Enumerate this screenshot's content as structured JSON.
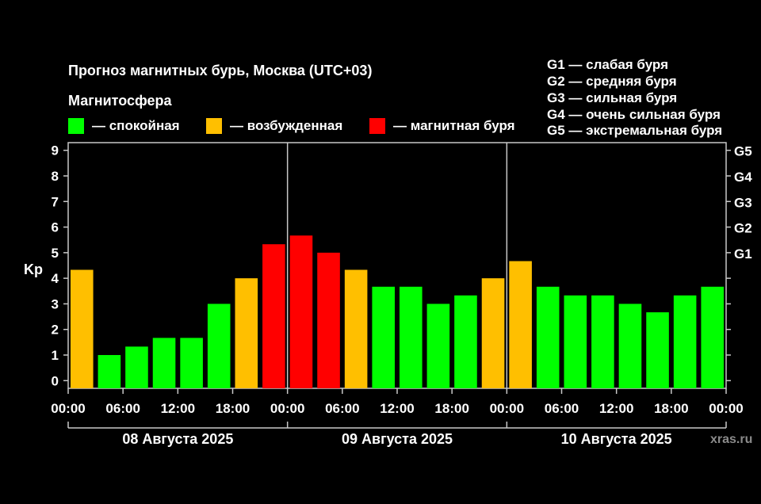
{
  "header": {
    "title": "Прогноз магнитных бурь, Москва (UTC+03)",
    "section": "Магнитосфера"
  },
  "legend": [
    {
      "label": "— спокойная",
      "color": "#00ff00"
    },
    {
      "label": "— возбужденная",
      "color": "#ffbf00"
    },
    {
      "label": "— магнитная буря",
      "color": "#ff0000"
    }
  ],
  "storm_scale": [
    "G1 — слабая буря",
    "G2 — средняя буря",
    "G3 — сильная буря",
    "G4 — очень сильная буря",
    "G5 — экстремальная буря"
  ],
  "watermark": "xras.ru",
  "colors": {
    "quiet": "#00ff00",
    "active": "#ffbf00",
    "storm": "#ff0000"
  },
  "chart_data": {
    "type": "bar",
    "ylabel": "Kp",
    "ylim": [
      -0.3,
      9.3
    ],
    "y_ticks": [
      "0",
      "1",
      "2",
      "3",
      "4",
      "5",
      "6",
      "7",
      "8",
      "9"
    ],
    "right_axis": [
      {
        "label": "G1",
        "kp": 5
      },
      {
        "label": "G2",
        "kp": 6
      },
      {
        "label": "G3",
        "kp": 7
      },
      {
        "label": "G4",
        "kp": 8
      },
      {
        "label": "G5",
        "kp": 9
      }
    ],
    "x_tick_labels": [
      "00:00",
      "06:00",
      "12:00",
      "18:00",
      "00:00",
      "06:00",
      "12:00",
      "18:00",
      "00:00",
      "06:00",
      "12:00",
      "18:00",
      "00:00"
    ],
    "days": [
      "08 Августа 2025",
      "09 Августа 2025",
      "10 Августа 2025"
    ],
    "values": [
      4.33,
      1.0,
      1.33,
      1.67,
      1.67,
      3.0,
      4.0,
      5.33,
      5.67,
      5.0,
      4.33,
      3.67,
      3.67,
      3.0,
      3.33,
      4.0,
      4.67,
      3.67,
      3.33,
      3.33,
      3.0,
      2.67,
      3.33,
      3.67
    ],
    "levels": [
      "active",
      "quiet",
      "quiet",
      "quiet",
      "quiet",
      "quiet",
      "active",
      "storm",
      "storm",
      "storm",
      "active",
      "quiet",
      "quiet",
      "quiet",
      "quiet",
      "active",
      "active",
      "quiet",
      "quiet",
      "quiet",
      "quiet",
      "quiet",
      "quiet",
      "quiet"
    ],
    "grid": false
  }
}
